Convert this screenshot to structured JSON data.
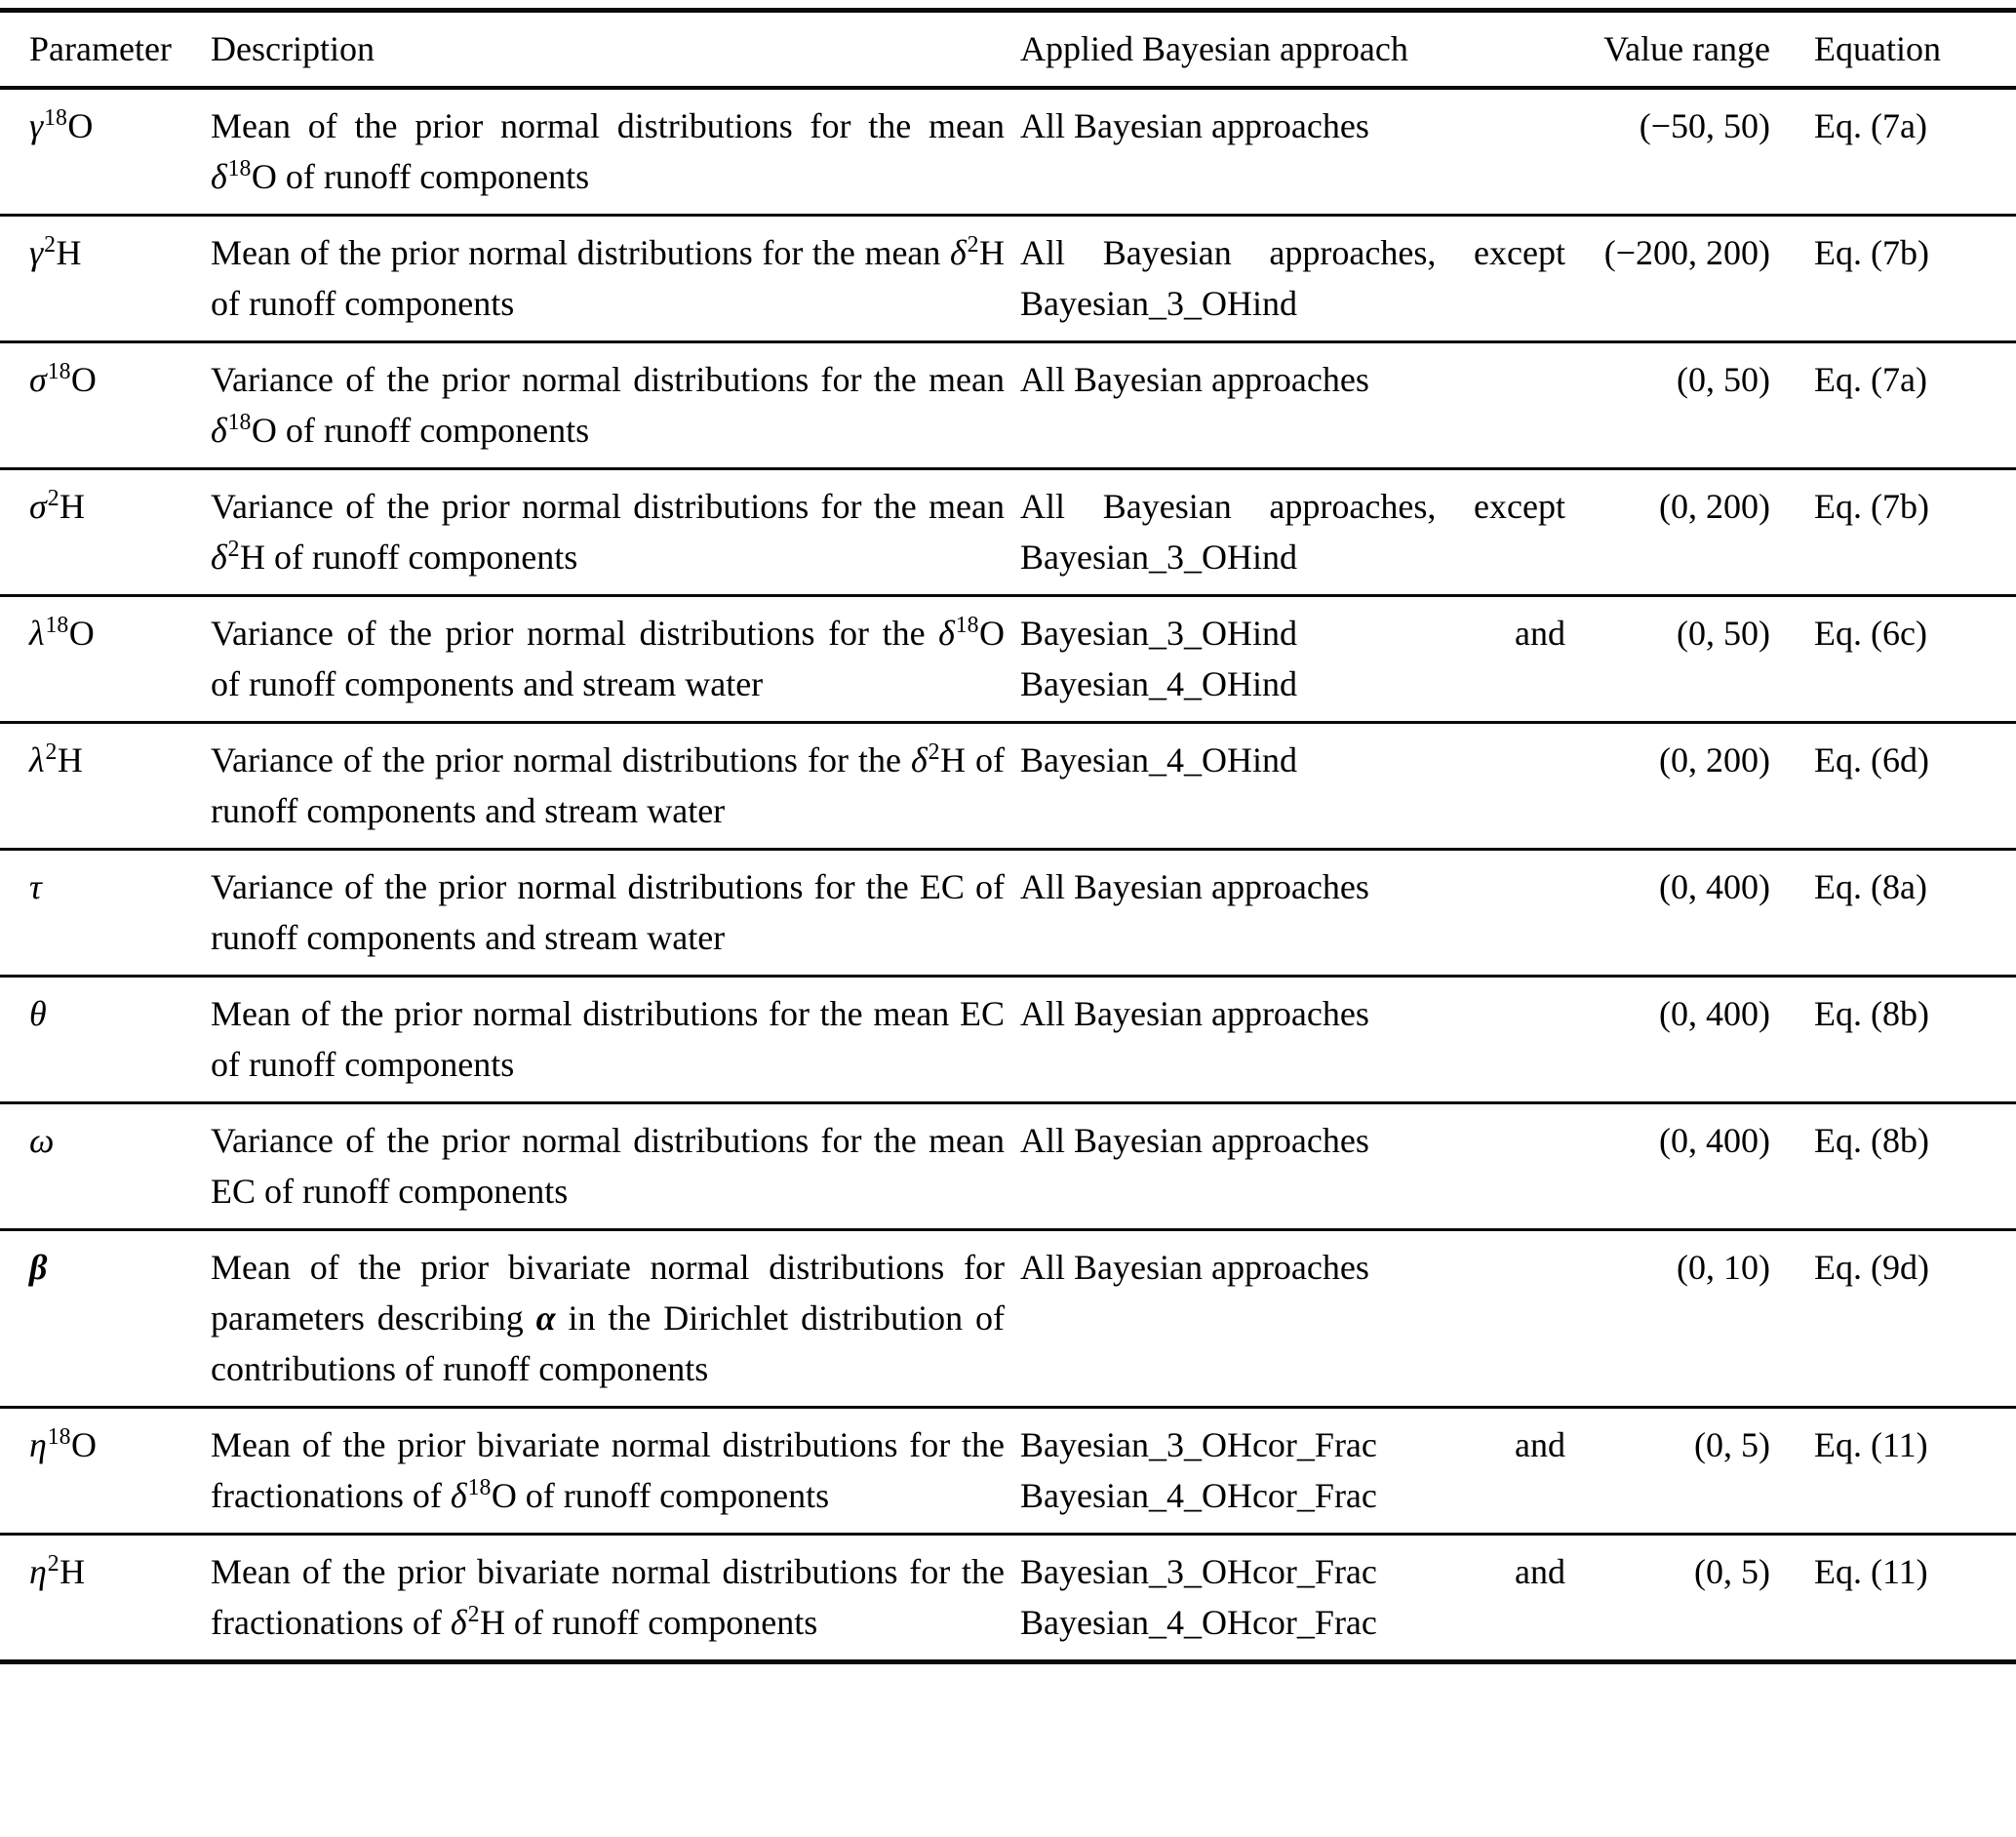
{
  "table": {
    "columns": [
      {
        "label": "Parameter"
      },
      {
        "label": "Description"
      },
      {
        "label": "Applied Bayesian approach"
      },
      {
        "label": "Value range"
      },
      {
        "label": "Equation"
      }
    ],
    "rows": [
      {
        "parameter": "*γ*^{18}O",
        "description": "Mean of the prior normal distributions for the mean *δ*^{18}O of runoff components",
        "approach": "All Bayesian approaches",
        "value_range": "(−50, 50)",
        "equation": "Eq. (7a)"
      },
      {
        "parameter": "*γ*^{2}H",
        "description": "Mean of the prior normal distributions for the mean *δ*^{2}H of runoff components",
        "approach": "All Bayesian approaches, except Bayesian_3_OHind",
        "value_range": "(−200, 200)",
        "equation": "Eq. (7b)"
      },
      {
        "parameter": "*σ*^{18}O",
        "description": "Variance of the prior normal distributions for the mean *δ*^{18}O of runoff components",
        "approach": "All Bayesian approaches",
        "value_range": "(0, 50)",
        "equation": "Eq. (7a)"
      },
      {
        "parameter": "*σ*^{2}H",
        "description": "Variance of the prior normal distributions for the mean *δ*^{2}H of runoff components",
        "approach": "All Bayesian approaches, except Bayesian_3_OHind",
        "value_range": "(0, 200)",
        "equation": "Eq. (7b)"
      },
      {
        "parameter": "*λ*^{18}O",
        "description": "Variance of the prior normal distributions for the *δ*^{18}O of runoff components and stream water",
        "approach": "Bayesian_3_OHind and Bayesian_4_OHind",
        "value_range": "(0, 50)",
        "equation": "Eq. (6c)"
      },
      {
        "parameter": "*λ*^{2}H",
        "description": "Variance of the prior normal distributions for the *δ*^{2}H of runoff components and stream water",
        "approach": "Bayesian_4_OHind",
        "value_range": "(0, 200)",
        "equation": "Eq. (6d)"
      },
      {
        "parameter": "*τ*",
        "description": "Variance of the prior normal distributions for the EC of runoff components and stream water",
        "approach": "All Bayesian approaches",
        "value_range": "(0, 400)",
        "equation": "Eq. (8a)"
      },
      {
        "parameter": "*θ*",
        "description": "Mean of the prior normal distributions for the mean EC of runoff components",
        "approach": "All Bayesian approaches",
        "value_range": "(0, 400)",
        "equation": "Eq. (8b)"
      },
      {
        "parameter": "*ω*",
        "description": "Variance of the prior normal distributions for the mean EC of runoff components",
        "approach": "All Bayesian approaches",
        "value_range": "(0, 400)",
        "equation": "Eq. (8b)"
      },
      {
        "parameter": "**β**",
        "description": "Mean of the prior bivariate normal distributions for parameters describing **α** in the Dirichlet distribution of contributions of runoff components",
        "approach": "All Bayesian approaches",
        "value_range": "(0, 10)",
        "equation": "Eq. (9d)"
      },
      {
        "parameter": "*η*^{18}O",
        "description": "Mean of the prior bivariate normal distributions for the fractionations of *δ*^{18}O of runoff components",
        "approach": "Bayesian_3_OHcor_Frac and Bayesian_4_OHcor_Frac",
        "value_range": "(0, 5)",
        "equation": "Eq. (11)"
      },
      {
        "parameter": "*η*^{2}H",
        "description": "Mean of the prior bivariate normal distributions for the fractionations of *δ*^{2}H of runoff components",
        "approach": "Bayesian_3_OHcor_Frac and Bayesian_4_OHcor_Frac",
        "value_range": "(0, 5)",
        "equation": "Eq. (11)"
      }
    ]
  }
}
